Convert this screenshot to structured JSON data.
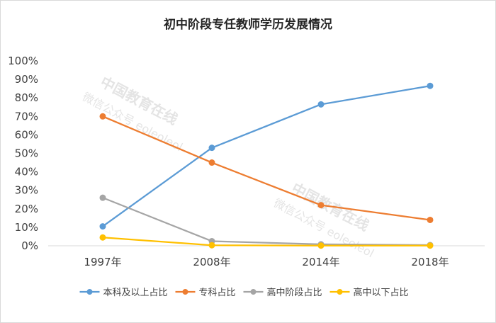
{
  "chart_data": {
    "type": "line",
    "title": "初中阶段专任教师学历发展情况",
    "categories": [
      "1997年",
      "2008年",
      "2014年",
      "2018年"
    ],
    "series": [
      {
        "name": "本科及以上占比",
        "values": [
          10.5,
          53,
          76.5,
          86.5
        ],
        "color": "#5b9bd5"
      },
      {
        "name": "专科占比",
        "values": [
          70,
          45,
          22,
          14
        ],
        "color": "#ed7d31"
      },
      {
        "name": "高中阶段占比",
        "values": [
          26,
          2.5,
          0.8,
          0.4
        ],
        "color": "#a5a5a5"
      },
      {
        "name": "高中以下占比",
        "values": [
          4.5,
          0.3,
          0.1,
          0.1
        ],
        "color": "#ffc000"
      }
    ],
    "ylim": [
      0,
      100
    ],
    "yticks": [
      "0%",
      "10%",
      "20%",
      "30%",
      "40%",
      "50%",
      "60%",
      "70%",
      "80%",
      "90%",
      "100%"
    ],
    "grid": false,
    "legend": "bottom"
  },
  "watermark": {
    "line1": "中国教育在线",
    "line2": "微信公众号 eoleoleol"
  }
}
